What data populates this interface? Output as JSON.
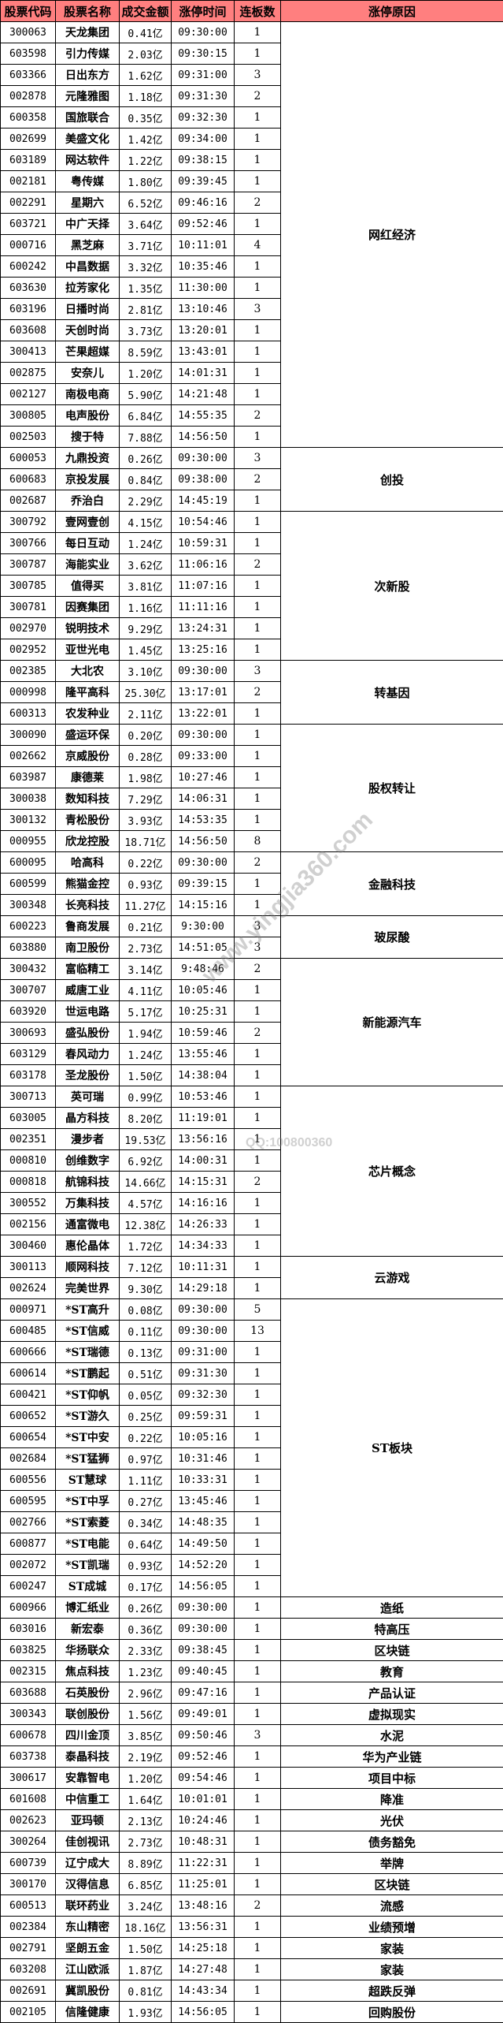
{
  "headers": [
    "股票代码",
    "股票名称",
    "成交金额",
    "涨停时间",
    "连板数",
    "涨停原因"
  ],
  "watermark": {
    "url": "www.yingjia360.com",
    "qq": "QQ:100800360"
  },
  "groups": [
    {
      "reason": "网红经济",
      "stocks": [
        [
          "300063",
          "天龙集团",
          "0.41亿",
          "09:30:00",
          "1"
        ],
        [
          "603598",
          "引力传媒",
          "2.03亿",
          "09:30:15",
          "1"
        ],
        [
          "603366",
          "日出东方",
          "1.62亿",
          "09:31:00",
          "3"
        ],
        [
          "002878",
          "元隆雅图",
          "1.18亿",
          "09:31:30",
          "2"
        ],
        [
          "600358",
          "国旅联合",
          "0.35亿",
          "09:32:30",
          "1"
        ],
        [
          "002699",
          "美盛文化",
          "1.42亿",
          "09:34:00",
          "1"
        ],
        [
          "603189",
          "网达软件",
          "1.22亿",
          "09:38:15",
          "1"
        ],
        [
          "002181",
          "粤传媒",
          "1.80亿",
          "09:39:45",
          "1"
        ],
        [
          "002291",
          "星期六",
          "6.52亿",
          "09:46:16",
          "2"
        ],
        [
          "603721",
          "中广天择",
          "3.64亿",
          "09:52:46",
          "1"
        ],
        [
          "000716",
          "黑芝麻",
          "3.71亿",
          "10:11:01",
          "4"
        ],
        [
          "600242",
          "中昌数据",
          "3.32亿",
          "10:35:46",
          "1"
        ],
        [
          "603630",
          "拉芳家化",
          "1.35亿",
          "11:30:00",
          "1"
        ],
        [
          "603196",
          "日播时尚",
          "2.81亿",
          "13:10:46",
          "3"
        ],
        [
          "603608",
          "天创时尚",
          "3.73亿",
          "13:20:01",
          "1"
        ],
        [
          "300413",
          "芒果超媒",
          "8.59亿",
          "13:43:01",
          "1"
        ],
        [
          "002875",
          "安奈儿",
          "1.20亿",
          "14:01:31",
          "1"
        ],
        [
          "002127",
          "南极电商",
          "5.90亿",
          "14:21:48",
          "1"
        ],
        [
          "300805",
          "电声股份",
          "6.84亿",
          "14:55:35",
          "2"
        ],
        [
          "002503",
          "搜于特",
          "7.88亿",
          "14:56:50",
          "1"
        ]
      ]
    },
    {
      "reason": "创投",
      "stocks": [
        [
          "600053",
          "九鼎投资",
          "0.26亿",
          "09:30:00",
          "3"
        ],
        [
          "600683",
          "京投发展",
          "0.84亿",
          "09:38:00",
          "2"
        ],
        [
          "002687",
          "乔治白",
          "2.29亿",
          "14:45:19",
          "1"
        ]
      ]
    },
    {
      "reason": "次新股",
      "stocks": [
        [
          "300792",
          "壹网壹创",
          "4.15亿",
          "10:54:46",
          "1"
        ],
        [
          "300766",
          "每日互动",
          "1.24亿",
          "10:59:31",
          "1"
        ],
        [
          "300787",
          "海能实业",
          "3.62亿",
          "11:06:16",
          "2"
        ],
        [
          "300785",
          "值得买",
          "3.81亿",
          "11:07:16",
          "1"
        ],
        [
          "300781",
          "因赛集团",
          "1.16亿",
          "11:11:16",
          "1"
        ],
        [
          "002970",
          "锐明技术",
          "9.29亿",
          "13:24:31",
          "1"
        ],
        [
          "002952",
          "亚世光电",
          "1.45亿",
          "13:25:16",
          "1"
        ]
      ]
    },
    {
      "reason": "转基因",
      "stocks": [
        [
          "002385",
          "大北农",
          "3.10亿",
          "09:30:00",
          "3"
        ],
        [
          "000998",
          "隆平高科",
          "25.30亿",
          "13:17:01",
          "2"
        ],
        [
          "600313",
          "农发种业",
          "2.11亿",
          "13:22:01",
          "1"
        ]
      ]
    },
    {
      "reason": "股权转让",
      "stocks": [
        [
          "300090",
          "盛运环保",
          "0.20亿",
          "09:30:00",
          "1"
        ],
        [
          "002662",
          "京威股份",
          "0.28亿",
          "09:33:00",
          "1"
        ],
        [
          "603987",
          "康德莱",
          "1.98亿",
          "10:27:46",
          "1"
        ],
        [
          "300038",
          "数知科技",
          "7.29亿",
          "14:06:31",
          "1"
        ],
        [
          "300132",
          "青松股份",
          "3.93亿",
          "14:53:35",
          "1"
        ],
        [
          "000955",
          "欣龙控股",
          "18.71亿",
          "14:56:50",
          "8"
        ]
      ]
    },
    {
      "reason": "金融科技",
      "stocks": [
        [
          "600095",
          "哈高科",
          "0.22亿",
          "09:30:00",
          "2"
        ],
        [
          "600599",
          "熊猫金控",
          "0.93亿",
          "09:39:15",
          "1"
        ],
        [
          "300348",
          "长亮科技",
          "11.27亿",
          "14:15:16",
          "1"
        ]
      ]
    },
    {
      "reason": "玻尿酸",
      "stocks": [
        [
          "600223",
          "鲁商发展",
          "0.21亿",
          "9:30:00",
          "3"
        ],
        [
          "603880",
          "南卫股份",
          "2.73亿",
          "14:51:05",
          "3"
        ]
      ]
    },
    {
      "reason": "新能源汽车",
      "stocks": [
        [
          "300432",
          "富临精工",
          "3.14亿",
          "9:48:46",
          "2"
        ],
        [
          "300707",
          "威唐工业",
          "4.11亿",
          "10:05:46",
          "1"
        ],
        [
          "603920",
          "世运电路",
          "5.17亿",
          "10:25:31",
          "1"
        ],
        [
          "300693",
          "盛弘股份",
          "1.94亿",
          "10:59:46",
          "2"
        ],
        [
          "603129",
          "春风动力",
          "1.24亿",
          "13:55:46",
          "1"
        ],
        [
          "603178",
          "圣龙股份",
          "1.50亿",
          "14:38:04",
          "1"
        ]
      ]
    },
    {
      "reason": "芯片概念",
      "stocks": [
        [
          "300713",
          "英可瑞",
          "0.99亿",
          "10:53:46",
          "1"
        ],
        [
          "603005",
          "晶方科技",
          "8.20亿",
          "11:19:01",
          "1"
        ],
        [
          "002351",
          "漫步者",
          "19.53亿",
          "13:56:16",
          "1"
        ],
        [
          "000810",
          "创维数字",
          "6.92亿",
          "14:00:31",
          "1"
        ],
        [
          "000818",
          "航锦科技",
          "14.66亿",
          "14:15:31",
          "2"
        ],
        [
          "300552",
          "万集科技",
          "4.57亿",
          "14:16:16",
          "1"
        ],
        [
          "002156",
          "通富微电",
          "12.38亿",
          "14:26:33",
          "1"
        ],
        [
          "300460",
          "惠伦晶体",
          "1.72亿",
          "14:34:33",
          "1"
        ]
      ]
    },
    {
      "reason": "云游戏",
      "stocks": [
        [
          "300113",
          "顺网科技",
          "7.12亿",
          "10:11:31",
          "1"
        ],
        [
          "002624",
          "完美世界",
          "9.30亿",
          "14:29:18",
          "1"
        ]
      ]
    },
    {
      "reason": "ST板块",
      "stocks": [
        [
          "000971",
          "*ST高升",
          "0.08亿",
          "09:30:00",
          "5"
        ],
        [
          "600485",
          "*ST信威",
          "0.11亿",
          "09:30:00",
          "13"
        ],
        [
          "600666",
          "*ST瑞德",
          "0.13亿",
          "09:31:00",
          "1"
        ],
        [
          "600614",
          "*ST鹏起",
          "0.51亿",
          "09:31:30",
          "1"
        ],
        [
          "600421",
          "*ST仰帆",
          "0.05亿",
          "09:32:30",
          "1"
        ],
        [
          "600652",
          "*ST游久",
          "0.25亿",
          "09:59:31",
          "1"
        ],
        [
          "600654",
          "*ST中安",
          "0.22亿",
          "10:05:16",
          "1"
        ],
        [
          "002684",
          "*ST猛狮",
          "0.97亿",
          "10:31:46",
          "1"
        ],
        [
          "600556",
          "ST慧球",
          "1.11亿",
          "10:33:31",
          "1"
        ],
        [
          "600595",
          "*ST中孚",
          "0.27亿",
          "13:45:46",
          "1"
        ],
        [
          "002766",
          "*ST索菱",
          "0.34亿",
          "14:48:35",
          "1"
        ],
        [
          "600877",
          "*ST电能",
          "0.64亿",
          "14:49:50",
          "1"
        ],
        [
          "002072",
          "*ST凯瑞",
          "0.93亿",
          "14:52:20",
          "1"
        ],
        [
          "600247",
          "ST成城",
          "0.17亿",
          "14:56:05",
          "1"
        ]
      ]
    },
    {
      "reason": "造纸",
      "stocks": [
        [
          "600966",
          "博汇纸业",
          "0.26亿",
          "09:30:00",
          "1"
        ]
      ]
    },
    {
      "reason": "特高压",
      "stocks": [
        [
          "603016",
          "新宏泰",
          "0.36亿",
          "09:30:00",
          "1"
        ]
      ]
    },
    {
      "reason": "区块链",
      "stocks": [
        [
          "603825",
          "华扬联众",
          "2.33亿",
          "09:38:45",
          "1"
        ]
      ]
    },
    {
      "reason": "教育",
      "stocks": [
        [
          "002315",
          "焦点科技",
          "1.23亿",
          "09:40:45",
          "1"
        ]
      ]
    },
    {
      "reason": "产品认证",
      "stocks": [
        [
          "603688",
          "石英股份",
          "2.96亿",
          "09:47:16",
          "1"
        ]
      ]
    },
    {
      "reason": "虚拟现实",
      "stocks": [
        [
          "300343",
          "联创股份",
          "1.56亿",
          "09:49:01",
          "1"
        ]
      ]
    },
    {
      "reason": "水泥",
      "stocks": [
        [
          "600678",
          "四川金顶",
          "3.85亿",
          "09:50:46",
          "3"
        ]
      ]
    },
    {
      "reason": "华为产业链",
      "stocks": [
        [
          "603738",
          "泰晶科技",
          "2.19亿",
          "09:52:46",
          "1"
        ]
      ]
    },
    {
      "reason": "项目中标",
      "stocks": [
        [
          "300617",
          "安靠智电",
          "1.20亿",
          "09:54:46",
          "1"
        ]
      ]
    },
    {
      "reason": "降准",
      "stocks": [
        [
          "601608",
          "中信重工",
          "1.64亿",
          "10:01:01",
          "1"
        ]
      ]
    },
    {
      "reason": "光伏",
      "stocks": [
        [
          "002623",
          "亚玛顿",
          "2.13亿",
          "10:24:46",
          "1"
        ]
      ]
    },
    {
      "reason": "债务豁免",
      "stocks": [
        [
          "300264",
          "佳创视讯",
          "2.73亿",
          "10:48:31",
          "1"
        ]
      ]
    },
    {
      "reason": "举牌",
      "stocks": [
        [
          "600739",
          "辽宁成大",
          "8.89亿",
          "11:22:31",
          "1"
        ]
      ]
    },
    {
      "reason": "区块链",
      "stocks": [
        [
          "300170",
          "汉得信息",
          "6.85亿",
          "11:25:01",
          "1"
        ]
      ]
    },
    {
      "reason": "流感",
      "stocks": [
        [
          "600513",
          "联环药业",
          "3.24亿",
          "13:48:16",
          "2"
        ]
      ]
    },
    {
      "reason": "业绩预增",
      "stocks": [
        [
          "002384",
          "东山精密",
          "18.16亿",
          "13:56:31",
          "1"
        ]
      ]
    },
    {
      "reason": "家装",
      "stocks": [
        [
          "002791",
          "坚朗五金",
          "1.50亿",
          "14:25:18",
          "1"
        ]
      ]
    },
    {
      "reason": "家装",
      "stocks": [
        [
          "603208",
          "江山欧派",
          "1.87亿",
          "14:27:48",
          "1"
        ]
      ]
    },
    {
      "reason": "超跌反弹",
      "stocks": [
        [
          "002691",
          "冀凯股份",
          "0.81亿",
          "14:43:34",
          "1"
        ]
      ]
    },
    {
      "reason": "回购股份",
      "stocks": [
        [
          "002105",
          "信隆健康",
          "1.93亿",
          "14:56:05",
          "1"
        ]
      ]
    }
  ]
}
